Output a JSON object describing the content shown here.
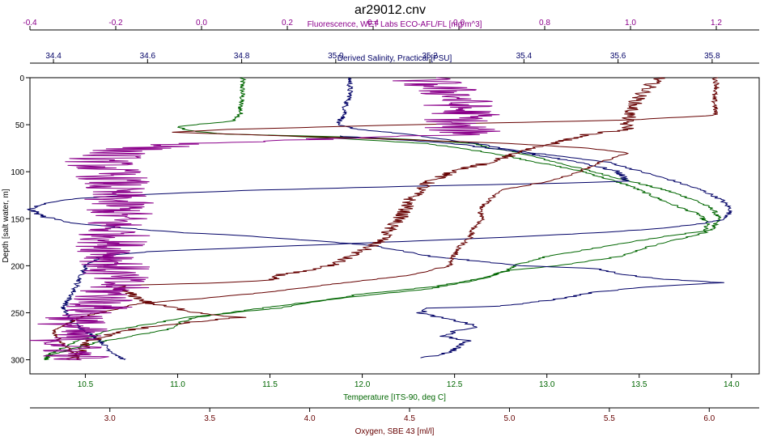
{
  "chart_data": {
    "type": "line",
    "title": "ar29012.cnv",
    "grid": false,
    "y_axis": {
      "label": "Depth [salt water, m]",
      "range": [
        0,
        315
      ],
      "inverted": true,
      "ticks": [
        0,
        50,
        100,
        150,
        200,
        250,
        300
      ],
      "color": "#000000"
    },
    "x_axes": [
      {
        "key": "fluorescence",
        "label": "Fluorescence, WET Labs ECO-AFL/FL [mg/m^3]",
        "position": "top-outer",
        "range": [
          -0.4,
          1.3
        ],
        "ticks": [
          -0.4,
          -0.2,
          0.0,
          0.2,
          0.4,
          0.6,
          0.8,
          1.0,
          1.2
        ],
        "tick_labels": [
          "-0.4",
          "-0.2",
          "0.0",
          "0.2",
          "0.4",
          "0.6",
          "0.8",
          "1.0",
          "1.2"
        ],
        "color": "#8b008b"
      },
      {
        "key": "salinity",
        "label": "Derived Salinity, Practical [PSU]",
        "position": "top-inner",
        "range": [
          34.35,
          35.9
        ],
        "ticks": [
          34.4,
          34.6,
          34.8,
          35.0,
          35.2,
          35.4,
          35.6,
          35.8
        ],
        "tick_labels": [
          "34.4",
          "34.6",
          "34.8",
          "35.0",
          "35.2",
          "35.4",
          "35.6",
          "35.8"
        ],
        "color": "#000066"
      },
      {
        "key": "temperature",
        "label": "Temperature [ITS-90, deg C]",
        "position": "bottom-inner",
        "range": [
          10.2,
          14.15
        ],
        "ticks": [
          10.5,
          11.0,
          11.5,
          12.0,
          12.5,
          13.0,
          13.5,
          14.0
        ],
        "tick_labels": [
          "10.5",
          "11.0",
          "11.5",
          "12.0",
          "12.5",
          "13.0",
          "13.5",
          "14.0"
        ],
        "color": "#006600"
      },
      {
        "key": "oxygen",
        "label": "Oxygen, SBE 43 [ml/l]",
        "position": "bottom-outer",
        "range": [
          2.6,
          6.25
        ],
        "ticks": [
          3.0,
          3.5,
          4.0,
          4.5,
          5.0,
          5.5,
          6.0
        ],
        "tick_labels": [
          "3.0",
          "3.5",
          "4.0",
          "4.5",
          "5.0",
          "5.5",
          "6.0"
        ],
        "color": "#660000"
      }
    ],
    "series": [
      {
        "axis": "temperature",
        "color": "#006600",
        "noise": 0.004,
        "points": [
          [
            0,
            11.35
          ],
          [
            10,
            11.35
          ],
          [
            20,
            11.35
          ],
          [
            30,
            11.34
          ],
          [
            40,
            11.34
          ],
          [
            46,
            11.3
          ],
          [
            52,
            11.0
          ],
          [
            56,
            11.05
          ],
          [
            60,
            11.25
          ],
          [
            63,
            11.9
          ],
          [
            66,
            12.3
          ],
          [
            70,
            12.6
          ],
          [
            75,
            12.7
          ],
          [
            80,
            12.85
          ],
          [
            90,
            13.05
          ],
          [
            100,
            13.25
          ],
          [
            110,
            13.45
          ],
          [
            120,
            13.65
          ],
          [
            130,
            13.8
          ],
          [
            140,
            13.9
          ],
          [
            150,
            13.93
          ],
          [
            160,
            13.9
          ],
          [
            165,
            13.85
          ],
          [
            170,
            13.75
          ],
          [
            180,
            13.55
          ],
          [
            190,
            13.4
          ],
          [
            200,
            13.05
          ],
          [
            205,
            12.8
          ],
          [
            210,
            12.7
          ],
          [
            215,
            12.6
          ],
          [
            222,
            12.4
          ],
          [
            230,
            12.0
          ],
          [
            240,
            11.7
          ],
          [
            245,
            11.55
          ],
          [
            250,
            11.3
          ],
          [
            255,
            11.05
          ],
          [
            262,
            10.85
          ],
          [
            270,
            10.6
          ],
          [
            275,
            10.55
          ],
          [
            280,
            10.45
          ],
          [
            285,
            10.4
          ],
          [
            290,
            10.35
          ],
          [
            295,
            10.3
          ],
          [
            300,
            10.28
          ]
        ]
      },
      {
        "axis": "temperature",
        "color": "#006600",
        "noise": 0.004,
        "points": [
          [
            61,
            11.5
          ],
          [
            65,
            11.9
          ],
          [
            70,
            12.35
          ],
          [
            80,
            12.7
          ],
          [
            90,
            12.95
          ],
          [
            100,
            13.2
          ],
          [
            115,
            13.45
          ],
          [
            130,
            13.62
          ],
          [
            138,
            13.72
          ],
          [
            145,
            13.82
          ],
          [
            155,
            13.87
          ],
          [
            163,
            13.85
          ],
          [
            170,
            13.6
          ],
          [
            180,
            13.3
          ],
          [
            190,
            13.0
          ],
          [
            198,
            12.85
          ],
          [
            205,
            12.78
          ],
          [
            212,
            12.68
          ],
          [
            218,
            12.55
          ],
          [
            225,
            12.35
          ],
          [
            232,
            12.0
          ],
          [
            240,
            11.65
          ],
          [
            248,
            11.35
          ],
          [
            255,
            11.1
          ],
          [
            260,
            11.02
          ],
          [
            268,
            10.95
          ],
          [
            275,
            10.75
          ],
          [
            282,
            10.55
          ],
          [
            290,
            10.4
          ],
          [
            296,
            10.3
          ],
          [
            300,
            10.28
          ]
        ]
      },
      {
        "axis": "salinity",
        "color": "#000066",
        "noise": 0.004,
        "points": [
          [
            0,
            35.03
          ],
          [
            10,
            35.03
          ],
          [
            20,
            35.03
          ],
          [
            30,
            35.02
          ],
          [
            40,
            35.02
          ],
          [
            45,
            35.01
          ],
          [
            50,
            35.0
          ],
          [
            55,
            35.05
          ],
          [
            60,
            35.15
          ],
          [
            65,
            35.22
          ],
          [
            70,
            35.3
          ],
          [
            75,
            35.35
          ],
          [
            80,
            35.42
          ],
          [
            85,
            35.5
          ],
          [
            90,
            35.58
          ],
          [
            100,
            35.65
          ],
          [
            110,
            35.72
          ],
          [
            120,
            35.78
          ],
          [
            130,
            35.82
          ],
          [
            140,
            35.84
          ],
          [
            150,
            35.83
          ],
          [
            155,
            35.78
          ],
          [
            160,
            35.7
          ],
          [
            165,
            35.55
          ],
          [
            170,
            35.35
          ],
          [
            175,
            35.1
          ],
          [
            180,
            34.85
          ],
          [
            185,
            34.6
          ],
          [
            190,
            34.5
          ],
          [
            200,
            34.47
          ],
          [
            210,
            34.46
          ],
          [
            220,
            34.45
          ],
          [
            230,
            34.44
          ],
          [
            245,
            34.42
          ],
          [
            260,
            34.44
          ],
          [
            270,
            34.47
          ],
          [
            280,
            34.5
          ],
          [
            290,
            34.52
          ],
          [
            300,
            34.55
          ]
        ]
      },
      {
        "axis": "salinity",
        "color": "#000066",
        "noise": 0.006,
        "points": [
          [
            62,
            35.0
          ],
          [
            65,
            35.1
          ],
          [
            70,
            35.25
          ],
          [
            80,
            35.4
          ],
          [
            90,
            35.52
          ],
          [
            100,
            35.6
          ],
          [
            110,
            35.62
          ],
          [
            112,
            35.5
          ],
          [
            115,
            35.2
          ],
          [
            120,
            34.8
          ],
          [
            125,
            34.55
          ],
          [
            130,
            34.42
          ],
          [
            135,
            34.37
          ],
          [
            140,
            34.35
          ],
          [
            148,
            34.38
          ],
          [
            155,
            34.45
          ],
          [
            160,
            34.55
          ],
          [
            165,
            34.68
          ],
          [
            168,
            34.8
          ],
          [
            175,
            35.0
          ],
          [
            180,
            35.1
          ],
          [
            190,
            35.2
          ],
          [
            195,
            35.3
          ],
          [
            200,
            35.4
          ],
          [
            203,
            35.55
          ],
          [
            208,
            35.6
          ],
          [
            212,
            35.65
          ],
          [
            215,
            35.72
          ],
          [
            218,
            35.82
          ],
          [
            222,
            35.68
          ],
          [
            228,
            35.55
          ],
          [
            235,
            35.48
          ],
          [
            240,
            35.4
          ],
          [
            243,
            35.35
          ],
          [
            245,
            35.2
          ],
          [
            250,
            35.18
          ],
          [
            255,
            35.22
          ],
          [
            260,
            35.27
          ],
          [
            265,
            35.3
          ],
          [
            270,
            35.25
          ],
          [
            275,
            35.23
          ],
          [
            280,
            35.28
          ],
          [
            290,
            35.25
          ],
          [
            295,
            35.22
          ],
          [
            298,
            35.18
          ]
        ]
      },
      {
        "axis": "oxygen",
        "color": "#660000",
        "noise": 0.004,
        "points": [
          [
            0,
            6.03
          ],
          [
            10,
            6.04
          ],
          [
            20,
            6.02
          ],
          [
            30,
            6.03
          ],
          [
            40,
            6.03
          ],
          [
            45,
            5.6
          ],
          [
            50,
            4.5
          ],
          [
            55,
            3.6
          ],
          [
            58,
            3.3
          ],
          [
            62,
            3.9
          ],
          [
            66,
            4.5
          ],
          [
            70,
            5.0
          ],
          [
            75,
            5.4
          ],
          [
            80,
            5.6
          ],
          [
            90,
            5.45
          ],
          [
            100,
            5.35
          ],
          [
            110,
            5.2
          ],
          [
            120,
            4.95
          ],
          [
            130,
            4.9
          ],
          [
            140,
            4.85
          ],
          [
            150,
            4.87
          ],
          [
            160,
            4.82
          ],
          [
            170,
            4.8
          ],
          [
            180,
            4.75
          ],
          [
            190,
            4.72
          ],
          [
            200,
            4.7
          ],
          [
            210,
            4.5
          ],
          [
            215,
            4.3
          ],
          [
            220,
            4.1
          ],
          [
            228,
            3.8
          ],
          [
            235,
            3.45
          ],
          [
            240,
            3.15
          ],
          [
            245,
            3.05
          ],
          [
            250,
            2.95
          ],
          [
            255,
            2.85
          ],
          [
            260,
            2.8
          ],
          [
            265,
            2.75
          ],
          [
            270,
            2.72
          ],
          [
            280,
            2.75
          ],
          [
            290,
            2.8
          ],
          [
            300,
            2.85
          ]
        ]
      },
      {
        "axis": "oxygen",
        "color": "#660000",
        "noise": 0.01,
        "points": [
          [
            0,
            5.75
          ],
          [
            5,
            5.72
          ],
          [
            10,
            5.7
          ],
          [
            20,
            5.65
          ],
          [
            30,
            5.62
          ],
          [
            40,
            5.6
          ],
          [
            50,
            5.58
          ],
          [
            55,
            5.6
          ],
          [
            60,
            5.4
          ],
          [
            65,
            5.3
          ],
          [
            70,
            5.22
          ],
          [
            75,
            5.1
          ],
          [
            80,
            5.05
          ],
          [
            90,
            4.9
          ],
          [
            100,
            4.72
          ],
          [
            110,
            4.6
          ],
          [
            120,
            4.55
          ],
          [
            130,
            4.5
          ],
          [
            140,
            4.48
          ],
          [
            150,
            4.45
          ],
          [
            160,
            4.4
          ],
          [
            170,
            4.38
          ],
          [
            180,
            4.3
          ],
          [
            190,
            4.2
          ],
          [
            200,
            4.1
          ],
          [
            210,
            3.85
          ],
          [
            215,
            3.8
          ],
          [
            218,
            3.55
          ],
          [
            221,
            3.05
          ],
          [
            225,
            3.05
          ],
          [
            230,
            3.1
          ],
          [
            240,
            3.2
          ],
          [
            250,
            3.45
          ],
          [
            255,
            3.65
          ],
          [
            260,
            3.4
          ],
          [
            265,
            3.2
          ],
          [
            270,
            3.05
          ],
          [
            280,
            2.9
          ],
          [
            290,
            2.85
          ],
          [
            300,
            2.8
          ]
        ]
      },
      {
        "axis": "fluorescence",
        "color": "#8b008b",
        "noise": 0.05,
        "points": [
          [
            0,
            0.5
          ],
          [
            10,
            0.55
          ],
          [
            20,
            0.6
          ],
          [
            30,
            0.6
          ],
          [
            40,
            0.62
          ],
          [
            50,
            0.58
          ],
          [
            55,
            0.6
          ],
          [
            60,
            0.65
          ],
          [
            65,
            0.3
          ],
          [
            70,
            0.0
          ],
          [
            75,
            -0.15
          ],
          [
            80,
            -0.2
          ],
          [
            90,
            -0.24
          ],
          [
            100,
            -0.22
          ],
          [
            110,
            -0.2
          ],
          [
            120,
            -0.22
          ],
          [
            130,
            -0.2
          ],
          [
            140,
            -0.19
          ],
          [
            150,
            -0.2
          ],
          [
            160,
            -0.21
          ],
          [
            170,
            -0.2
          ],
          [
            180,
            -0.21
          ],
          [
            190,
            -0.2
          ],
          [
            200,
            -0.2
          ],
          [
            210,
            -0.21
          ],
          [
            220,
            -0.2
          ],
          [
            230,
            -0.22
          ],
          [
            240,
            -0.23
          ],
          [
            250,
            -0.26
          ],
          [
            260,
            -0.3
          ],
          [
            270,
            -0.3
          ],
          [
            280,
            -0.32
          ],
          [
            290,
            -0.3
          ],
          [
            300,
            -0.28
          ]
        ]
      }
    ]
  }
}
